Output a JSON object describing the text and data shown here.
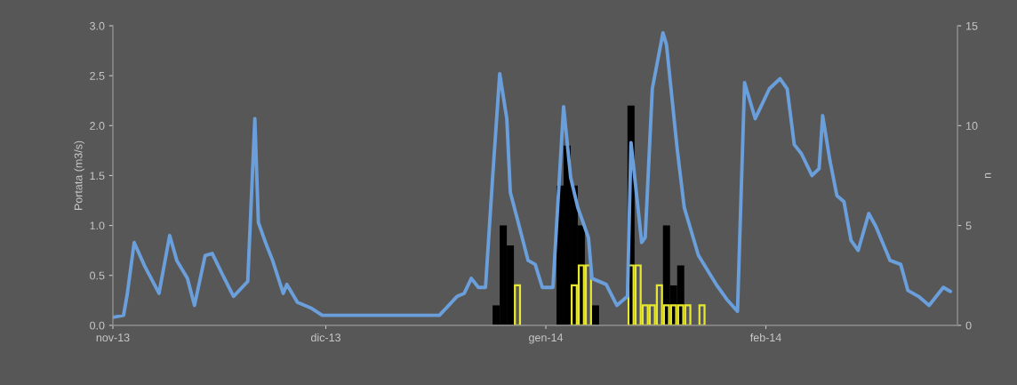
{
  "chart_data": {
    "type": "line",
    "ylabel": "Portata (m3/s)",
    "y2label": "n",
    "xlim": [
      "2013-11-01",
      "2014-02-28"
    ],
    "xticks": [
      {
        "value": "2013-11-01",
        "label": "nov-13"
      },
      {
        "value": "2013-12-01",
        "label": "dic-13"
      },
      {
        "value": "2014-01-01",
        "label": "gen-14"
      },
      {
        "value": "2014-02-01",
        "label": "feb-14"
      }
    ],
    "ylim": [
      0,
      3
    ],
    "yticks": [
      {
        "value": 0,
        "label": "0.0"
      },
      {
        "value": 0.5,
        "label": "0.5"
      },
      {
        "value": 1,
        "label": "1.0"
      },
      {
        "value": 1.5,
        "label": "1.5"
      },
      {
        "value": 2,
        "label": "2.0"
      },
      {
        "value": 2.5,
        "label": "2.5"
      },
      {
        "value": 3,
        "label": "3.0"
      }
    ],
    "y2lim": [
      0,
      15
    ],
    "y2ticks": [
      0,
      5,
      10,
      15
    ],
    "grid": false,
    "legend": false,
    "series": [
      {
        "type": "bar",
        "axis": "y2",
        "color": "#000000",
        "x": [
          "2013-12-25",
          "2013-12-26",
          "2013-12-27",
          "2014-01-03",
          "2014-01-04",
          "2014-01-05",
          "2014-01-06",
          "2014-01-07",
          "2014-01-08",
          "2014-01-13",
          "2014-01-14",
          "2014-01-18",
          "2014-01-19",
          "2014-01-20"
        ],
        "values": [
          1,
          5,
          4,
          7,
          9,
          7,
          5,
          null,
          1,
          11,
          null,
          5,
          2,
          3
        ]
      },
      {
        "color": "#6a9fdc",
        "x": [
          "2013-11-01",
          "2013-11-02T12:00",
          "2013-11-03",
          "2013-11-04",
          "2013-11-05T12:00",
          "2013-11-07T12:00",
          "2013-11-09",
          "2013-11-10",
          "2013-11-11T12:00",
          "2013-11-12T12:00",
          "2013-11-14",
          "2013-11-15",
          "2013-11-16T12:00",
          "2013-11-18",
          "2013-11-20",
          "2013-11-21",
          "2013-11-21T12:00",
          "2013-11-22T12:00",
          "2013-11-23T12:00",
          "2013-11-25",
          "2013-11-25T12:00",
          "2013-11-27",
          "2013-11-29",
          "2013-11-30T12:00",
          "2013-12-17",
          "2013-12-19T12:00",
          "2013-12-20T12:00",
          "2013-12-21T12:00",
          "2013-12-22T12:00",
          "2013-12-23T12:00",
          "2013-12-24T12:00",
          "2013-12-25T12:00",
          "2013-12-26T12:00",
          "2013-12-27",
          "2013-12-28",
          "2013-12-29T12:00",
          "2013-12-30T12:00",
          "2013-12-31T12:00",
          "2014-01-02",
          "2014-01-03T12:00",
          "2014-01-04T12:00",
          "2014-01-05T12:00",
          "2014-01-07",
          "2014-01-07T12:00",
          "2014-01-09T12:00",
          "2014-01-11",
          "2014-01-12T12:00",
          "2014-01-13",
          "2014-01-14T12:00",
          "2014-01-15",
          "2014-01-16",
          "2014-01-17T12:00",
          "2014-01-18",
          "2014-01-19T12:00",
          "2014-01-20T12:00",
          "2014-01-22T12:00",
          "2014-01-25",
          "2014-01-26T12:00",
          "2014-01-28",
          "2014-01-29",
          "2014-01-30T12:00",
          "2014-02-01T12:00",
          "2014-02-03",
          "2014-02-04",
          "2014-02-05",
          "2014-02-06",
          "2014-02-07T12:00",
          "2014-02-08T12:00",
          "2014-02-09",
          "2014-02-10",
          "2014-02-11",
          "2014-02-12",
          "2014-02-13",
          "2014-02-14",
          "2014-02-15T12:00",
          "2014-02-16T12:00",
          "2014-02-18T12:00",
          "2014-02-20",
          "2014-02-21",
          "2014-02-22T12:00",
          "2014-02-24",
          "2014-02-26",
          "2014-02-27"
        ],
        "values": [
          0.08,
          0.1,
          0.3,
          0.83,
          0.59,
          0.32,
          0.9,
          0.65,
          0.47,
          0.2,
          0.7,
          0.72,
          0.5,
          0.29,
          0.44,
          2.07,
          1.03,
          0.83,
          0.65,
          0.32,
          0.41,
          0.23,
          0.17,
          0.1,
          0.1,
          0.29,
          0.32,
          0.47,
          0.38,
          0.38,
          1.48,
          2.52,
          2.07,
          1.33,
          1.06,
          0.65,
          0.61,
          0.38,
          0.38,
          2.19,
          1.48,
          1.18,
          0.88,
          0.47,
          0.41,
          0.2,
          0.29,
          1.83,
          0.83,
          0.88,
          2.37,
          2.93,
          2.81,
          1.77,
          1.18,
          0.7,
          0.41,
          0.26,
          0.14,
          2.43,
          2.07,
          2.37,
          2.47,
          2.37,
          1.81,
          1.72,
          1.5,
          1.57,
          2.1,
          1.66,
          1.3,
          1.24,
          0.85,
          0.75,
          1.12,
          0.99,
          0.65,
          0.61,
          0.35,
          0.29,
          0.2,
          0.38,
          0.34
        ]
      },
      {
        "type": "bar",
        "axis": "y2",
        "color": "#e8e830",
        "x": [
          "2013-12-28",
          "2014-01-05",
          "2014-01-06",
          "2014-01-07",
          "2014-01-13",
          "2014-01-14",
          "2014-01-15",
          "2014-01-16",
          "2014-01-17",
          "2014-01-18",
          "2014-01-19",
          "2014-01-20",
          "2014-01-21",
          "2014-01-23"
        ],
        "values": [
          2,
          2,
          3,
          3,
          3,
          3,
          1,
          1,
          2,
          1,
          1,
          1,
          1,
          1
        ]
      }
    ]
  }
}
